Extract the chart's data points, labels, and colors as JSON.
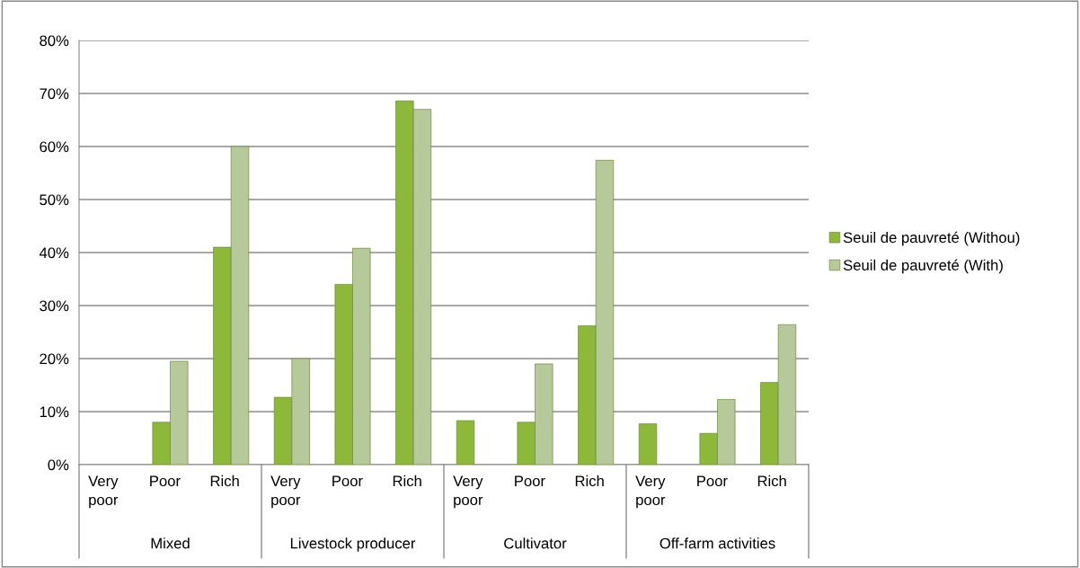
{
  "chart_data": {
    "type": "bar",
    "categories": [
      "Very poor",
      "Poor",
      "Rich",
      "Very poor",
      "Poor",
      "Rich",
      "Very poor",
      "Poor",
      "Rich",
      "Very poor",
      "Poor",
      "Rich"
    ],
    "annotations": [
      "Mixed",
      "Livestock producer",
      "Cultivator",
      "Off-farm activities"
    ],
    "series": [
      {
        "name": "Seuil de pauvreté (Withou)",
        "color": "#8db83a",
        "values": [
          null,
          8.0,
          41.0,
          12.7,
          34.0,
          68.6,
          8.3,
          8.0,
          26.2,
          7.7,
          5.9,
          15.5
        ]
      },
      {
        "name": "Seuil de pauvreté (With)",
        "color": "#b5c99a",
        "values": [
          null,
          19.5,
          60.0,
          20.0,
          40.8,
          67.0,
          null,
          19.0,
          57.4,
          null,
          12.3,
          26.4
        ]
      }
    ],
    "ylim": [
      0,
      80
    ],
    "yticks": [
      {
        "value": 0,
        "label": "0%"
      },
      {
        "value": 10,
        "label": "10%"
      },
      {
        "value": 20,
        "label": "20%"
      },
      {
        "value": 30,
        "label": "30%"
      },
      {
        "value": 40,
        "label": "40%"
      },
      {
        "value": 50,
        "label": "50%"
      },
      {
        "value": 60,
        "label": "60%"
      },
      {
        "value": 70,
        "label": "70%"
      },
      {
        "value": 80,
        "label": "80%"
      }
    ],
    "grid": "y",
    "legend": "right"
  }
}
